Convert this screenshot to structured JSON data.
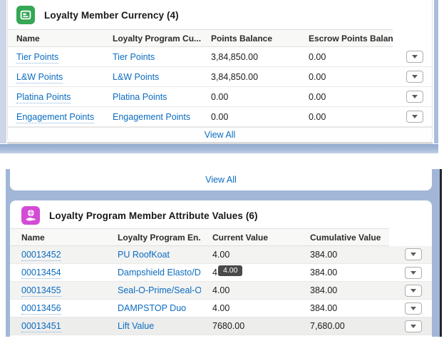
{
  "colors": {
    "link_blue": "#0b6cc0",
    "page_band_blue": "#a2b7d7",
    "currency_icon_green": "#35a755",
    "attribute_icon_magenta": "#d44bd6",
    "tooltip_bg": "#4a4a4a"
  },
  "icons": {
    "currency_card": "loyalty-member-currency-icon",
    "attributes_card": "hand-holding-coin-icon",
    "row_action": "chevron-down-icon"
  },
  "currency_card": {
    "title": "Loyalty Member Currency (4)",
    "columns": [
      "Name",
      "Loyalty Program Cu...",
      "Points Balance",
      "Escrow Points Balan..."
    ],
    "rows": [
      {
        "name": "Tier Points",
        "program_currency": "Tier Points",
        "points_balance": "3,84,850.00",
        "escrow_balance": "0.00"
      },
      {
        "name": "L&W Points",
        "program_currency": "L&W Points",
        "points_balance": "3,84,850.00",
        "escrow_balance": "0.00"
      },
      {
        "name": "Platina Points",
        "program_currency": "Platina Points",
        "points_balance": "0.00",
        "escrow_balance": "0.00"
      },
      {
        "name": "Engagement Points",
        "program_currency": "Engagement Points",
        "points_balance": "0.00",
        "escrow_balance": "0.00"
      }
    ],
    "view_all": "View All"
  },
  "fragment_card": {
    "view_all": "View All"
  },
  "attributes_card": {
    "title": "Loyalty Program Member Attribute Values (6)",
    "columns": [
      "Name",
      "Loyalty Program En...",
      "Current Value",
      "Cumulative Value"
    ],
    "rows": [
      {
        "name": "00013452",
        "engagement_attribute": "PU RoofKoat",
        "current_value": "4.00",
        "cumulative_value": "384.00"
      },
      {
        "name": "00013454",
        "engagement_attribute": "Dampshield Elasto/D...",
        "current_value": "4.00",
        "cumulative_value": "384.00"
      },
      {
        "name": "00013455",
        "engagement_attribute": "Seal-O-Prime/Seal-O...",
        "current_value": "4.00",
        "cumulative_value": "384.00"
      },
      {
        "name": "00013456",
        "engagement_attribute": "DAMPSTOP Duo",
        "current_value": "4.00",
        "cumulative_value": "384.00"
      },
      {
        "name": "00013451",
        "engagement_attribute": "Lift Value",
        "current_value": "7680.00",
        "cumulative_value": "7,680.00"
      }
    ],
    "tooltip": "4.00"
  }
}
